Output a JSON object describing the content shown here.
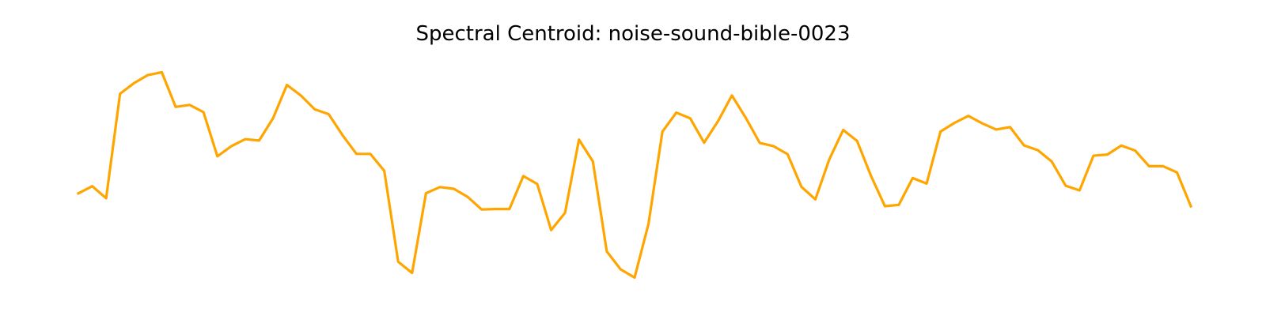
{
  "chart_data": {
    "type": "line",
    "title": "Spectral Centroid: noise-sound-bible-0023",
    "xlabel": "",
    "ylabel": "",
    "axes_visible": false,
    "grid": false,
    "legend": "none",
    "x": [
      0,
      1,
      2,
      3,
      4,
      5,
      6,
      7,
      8,
      9,
      10,
      11,
      12,
      13,
      14,
      15,
      16,
      17,
      18,
      19,
      20,
      21,
      22,
      23,
      24,
      25,
      26,
      27,
      28,
      29,
      30,
      31,
      32,
      33,
      34,
      35,
      36,
      37,
      38,
      39,
      40,
      41,
      42,
      43,
      44,
      45,
      46,
      47,
      48,
      49,
      50,
      51,
      52,
      53,
      54,
      55,
      56,
      57,
      58,
      59,
      60,
      61,
      62,
      63,
      64,
      65,
      66,
      67,
      68,
      69,
      70,
      71,
      72,
      73,
      74,
      75,
      76,
      77,
      78,
      79,
      80
    ],
    "xlim": [
      0,
      80
    ],
    "ylim": [
      0,
      1
    ],
    "series": [
      {
        "color": "#ffa500",
        "values": [
          0.407,
          0.44,
          0.385,
          0.861,
          0.909,
          0.946,
          0.959,
          0.801,
          0.81,
          0.777,
          0.576,
          0.622,
          0.654,
          0.648,
          0.749,
          0.901,
          0.853,
          0.79,
          0.768,
          0.672,
          0.587,
          0.587,
          0.51,
          0.096,
          0.045,
          0.408,
          0.436,
          0.428,
          0.391,
          0.334,
          0.336,
          0.336,
          0.486,
          0.45,
          0.24,
          0.319,
          0.652,
          0.553,
          0.143,
          0.061,
          0.024,
          0.268,
          0.688,
          0.775,
          0.749,
          0.638,
          0.736,
          0.853,
          0.751,
          0.637,
          0.622,
          0.586,
          0.437,
          0.38,
          0.562,
          0.696,
          0.646,
          0.487,
          0.349,
          0.355,
          0.477,
          0.452,
          0.689,
          0.728,
          0.76,
          0.726,
          0.698,
          0.709,
          0.626,
          0.604,
          0.552,
          0.442,
          0.421,
          0.579,
          0.584,
          0.625,
          0.602,
          0.531,
          0.531,
          0.503,
          0.349
        ]
      }
    ]
  }
}
